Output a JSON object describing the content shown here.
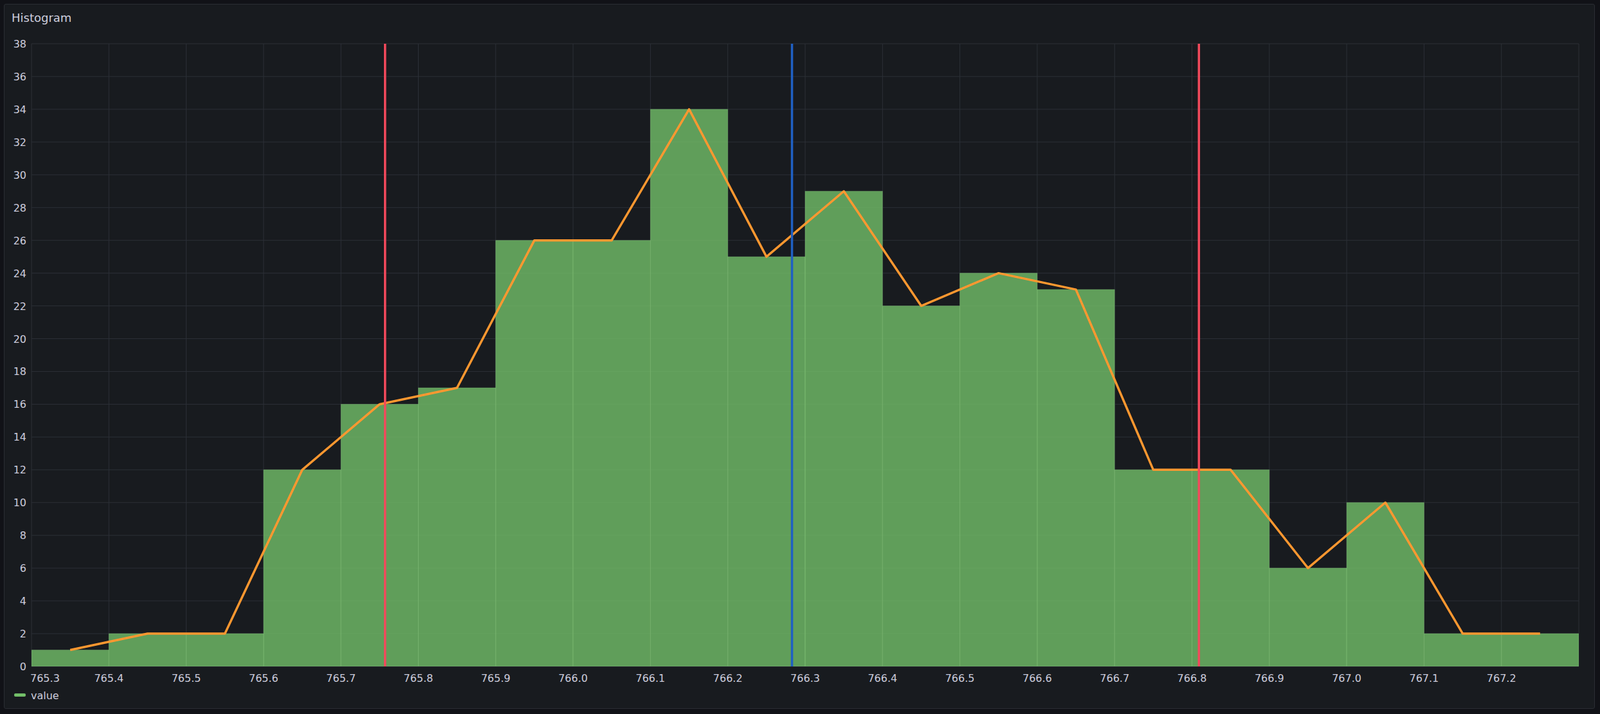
{
  "chart_data": {
    "type": "histogram",
    "title": "Histogram",
    "bins": [
      765.3,
      765.4,
      765.5,
      765.6,
      765.7,
      765.8,
      765.9,
      766.0,
      766.1,
      766.2,
      766.3,
      766.4,
      766.5,
      766.6,
      766.7,
      766.8,
      766.9,
      767.0,
      767.1,
      767.2,
      767.3
    ],
    "series": [
      {
        "name": "value",
        "type": "bar",
        "color": "#73bf69",
        "values": [
          1,
          2,
          2,
          12,
          16,
          17,
          26,
          26,
          34,
          25,
          29,
          22,
          24,
          23,
          12,
          12,
          6,
          10,
          2,
          2
        ]
      },
      {
        "type": "line",
        "color": "#ff9830",
        "x": [
          765.35,
          765.45,
          765.55,
          765.65,
          765.75,
          765.85,
          765.95,
          766.05,
          766.15,
          766.25,
          766.35,
          766.45,
          766.55,
          766.65,
          766.75,
          766.85,
          766.95,
          767.05,
          767.15,
          767.25
        ],
        "values": [
          1,
          2,
          2,
          12,
          16,
          17,
          26,
          26,
          34,
          25,
          29,
          22,
          24,
          23,
          12,
          12,
          6,
          10,
          2,
          2
        ]
      }
    ],
    "vlines": [
      {
        "x": 765.757,
        "color": "#f2495c"
      },
      {
        "x": 766.283,
        "color": "#1f60c4"
      },
      {
        "x": 766.809,
        "color": "#f2495c"
      }
    ],
    "xlim": [
      765.3,
      767.3
    ],
    "xticks": [
      765.3,
      765.4,
      765.5,
      765.6,
      765.7,
      765.8,
      765.9,
      {
        "value": 766.0,
        "label": "766.0"
      },
      766.1,
      766.2,
      766.3,
      766.4,
      766.5,
      766.6,
      766.7,
      766.8,
      766.9,
      {
        "value": 767.0,
        "label": "767.0"
      },
      767.1,
      767.2
    ],
    "ylim": [
      0,
      38
    ],
    "yticks": [
      0,
      2,
      4,
      6,
      8,
      10,
      12,
      14,
      16,
      18,
      20,
      22,
      24,
      26,
      28,
      30,
      32,
      34,
      36,
      38
    ],
    "grid": true,
    "legend": "bottom-left"
  }
}
